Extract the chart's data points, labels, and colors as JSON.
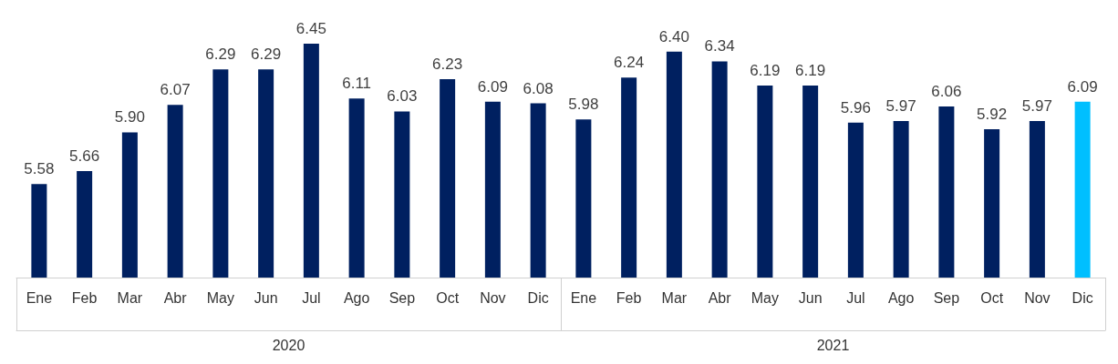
{
  "chart_data": {
    "type": "bar",
    "categories": [
      "Ene",
      "Feb",
      "Mar",
      "Abr",
      "May",
      "Jun",
      "Jul",
      "Ago",
      "Sep",
      "Oct",
      "Nov",
      "Dic",
      "Ene",
      "Feb",
      "Mar",
      "Abr",
      "May",
      "Jun",
      "Jul",
      "Ago",
      "Sep",
      "Oct",
      "Nov",
      "Dic"
    ],
    "values": [
      5.58,
      5.66,
      5.9,
      6.07,
      6.29,
      6.29,
      6.45,
      6.11,
      6.03,
      6.23,
      6.09,
      6.08,
      5.98,
      6.24,
      6.4,
      6.34,
      6.19,
      6.19,
      5.96,
      5.97,
      6.06,
      5.92,
      5.97,
      6.09
    ],
    "colors": [
      "#002060",
      "#002060",
      "#002060",
      "#002060",
      "#002060",
      "#002060",
      "#002060",
      "#002060",
      "#002060",
      "#002060",
      "#002060",
      "#002060",
      "#002060",
      "#002060",
      "#002060",
      "#002060",
      "#002060",
      "#002060",
      "#002060",
      "#002060",
      "#002060",
      "#002060",
      "#002060",
      "#00bfff"
    ],
    "value_labels": [
      "5.58",
      "5.66",
      "5.90",
      "6.07",
      "6.29",
      "6.29",
      "6.45",
      "6.11",
      "6.03",
      "6.23",
      "6.09",
      "6.08",
      "5.98",
      "6.24",
      "6.40",
      "6.34",
      "6.19",
      "6.19",
      "5.96",
      "5.97",
      "6.06",
      "5.92",
      "5.97",
      "6.09"
    ],
    "ylim": [
      5.0,
      6.45
    ],
    "tick_labels": "x",
    "grid": false,
    "annotations": [
      "2020",
      "2021"
    ]
  }
}
